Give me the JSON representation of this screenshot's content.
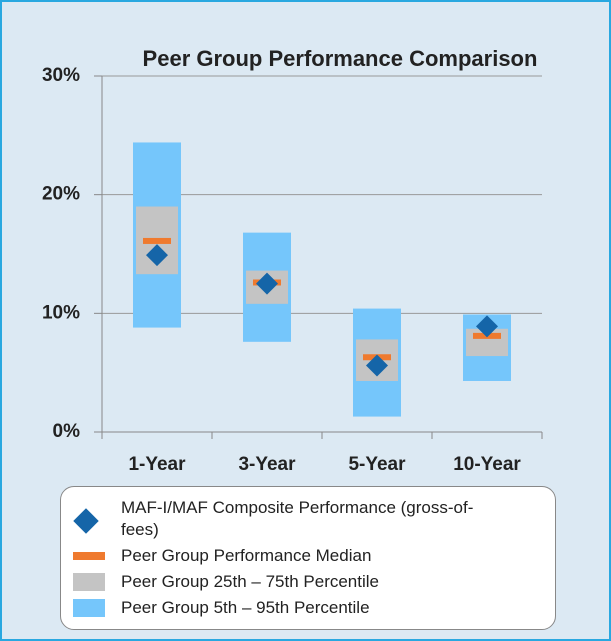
{
  "chart_data": {
    "type": "floating-range",
    "title": "Peer Group Performance Comparison",
    "categories": [
      "1-Year",
      "3-Year",
      "5-Year",
      "10-Year"
    ],
    "ylim": [
      0,
      30
    ],
    "yticks": [
      {
        "value": 0,
        "label": "0%"
      },
      {
        "value": 10,
        "label": "10%"
      },
      {
        "value": 20,
        "label": "20%"
      },
      {
        "value": 30,
        "label": "30%"
      }
    ],
    "grid": true,
    "series": [
      {
        "name": "Peer Group 5th – 95th Percentile",
        "color": "#75c6fb",
        "low": [
          8.8,
          7.6,
          1.3,
          4.3
        ],
        "high": [
          24.4,
          16.8,
          10.4,
          9.9
        ]
      },
      {
        "name": "Peer Group 25th – 75th Percentile",
        "color": "#c4c4c4",
        "low": [
          13.3,
          10.8,
          4.3,
          6.4
        ],
        "high": [
          19.0,
          13.6,
          7.8,
          8.7
        ]
      },
      {
        "name": "Peer Group Performance Median",
        "color": "#ef7a2e",
        "values": [
          16.1,
          12.6,
          6.3,
          8.1
        ]
      },
      {
        "name": "MAF-I/MAF Composite Performance (gross-of-fees)",
        "color": "#1565a8",
        "values": [
          14.9,
          12.5,
          5.6,
          8.9
        ]
      }
    ]
  }
}
